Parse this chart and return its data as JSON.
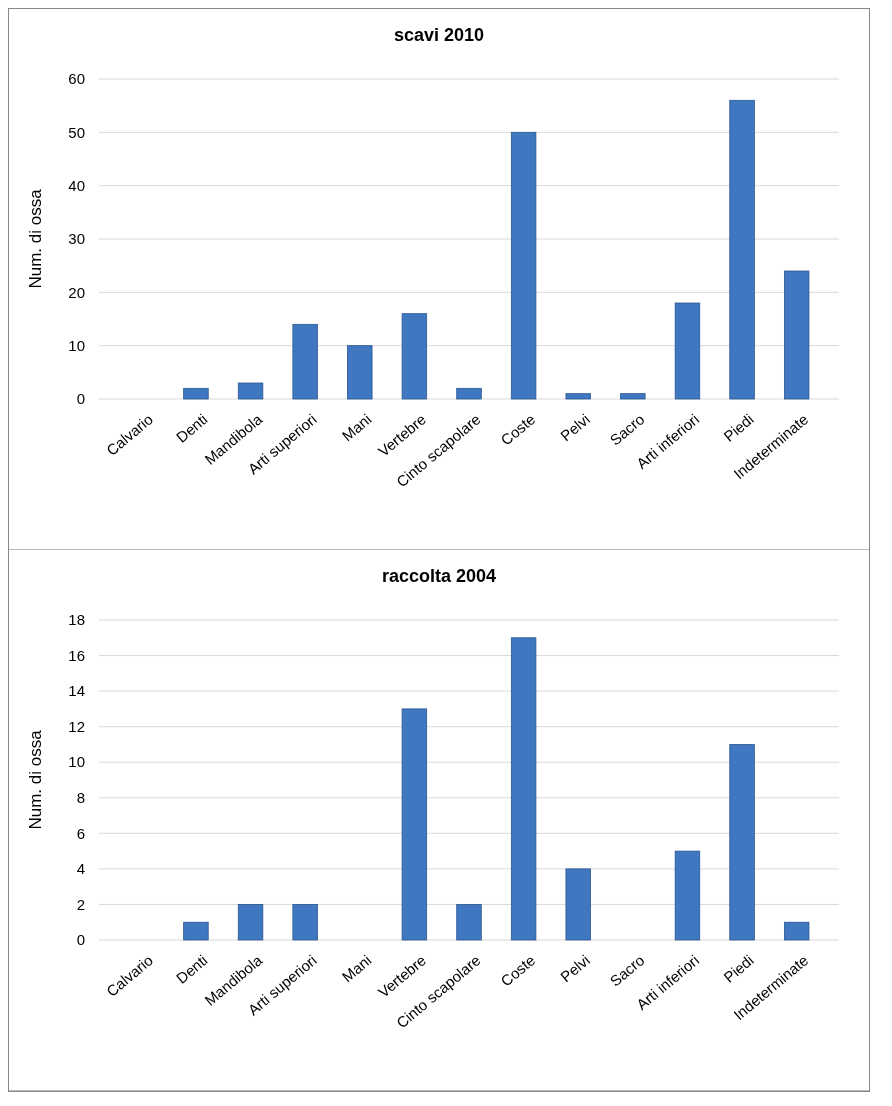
{
  "chart_data": [
    {
      "type": "bar",
      "title": "scavi 2010",
      "ylabel": "Num. di ossa",
      "categories": [
        "Calvario",
        "Denti",
        "Mandibola",
        "Arti superiori",
        "Mani",
        "Vertebre",
        "Cinto scapolare",
        "Coste",
        "Pelvi",
        "Sacro",
        "Arti inferiori",
        "Piedi",
        "Indeterminate"
      ],
      "values": [
        0,
        2,
        3,
        14,
        10,
        16,
        2,
        50,
        1,
        1,
        18,
        56,
        24
      ],
      "color": "#3f78c0",
      "ylim": [
        0,
        60
      ],
      "yticks": [
        0,
        10,
        20,
        30,
        40,
        50,
        60
      ],
      "grid": "y"
    },
    {
      "type": "bar",
      "title": "raccolta 2004",
      "ylabel": "Num. di ossa",
      "categories": [
        "Calvario",
        "Denti",
        "Mandibola",
        "Arti superiori",
        "Mani",
        "Vertebre",
        "Cinto scapolare",
        "Coste",
        "Pelvi",
        "Sacro",
        "Arti inferiori",
        "Piedi",
        "Indeterminate"
      ],
      "values": [
        0,
        1,
        2,
        2,
        0,
        13,
        2,
        17,
        4,
        0,
        5,
        11,
        1
      ],
      "color": "#3f78c0",
      "ylim": [
        0,
        18
      ],
      "yticks": [
        0,
        2,
        4,
        6,
        8,
        10,
        12,
        14,
        16,
        18
      ],
      "grid": "y"
    }
  ]
}
